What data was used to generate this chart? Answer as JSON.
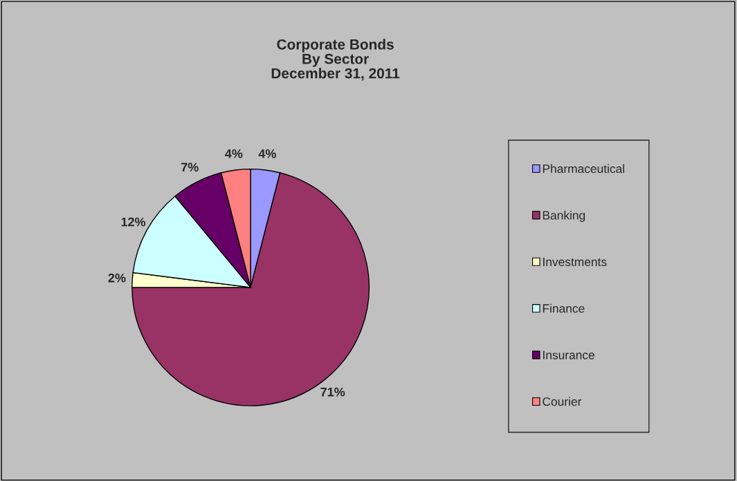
{
  "chart_data": {
    "type": "pie",
    "title": "Corporate Bonds\nBy Sector\nDecember 31, 2011",
    "categories": [
      "Pharmaceutical",
      "Banking",
      "Investments",
      "Finance",
      "Insurance",
      "Courier"
    ],
    "values": [
      4,
      71,
      2,
      12,
      7,
      4
    ],
    "value_labels": [
      "4%",
      "71%",
      "2%",
      "12%",
      "7%",
      "4%"
    ],
    "colors": [
      "#9999ff",
      "#993366",
      "#ffffcc",
      "#ccffff",
      "#660066",
      "#ff8080"
    ],
    "legend": "right"
  }
}
